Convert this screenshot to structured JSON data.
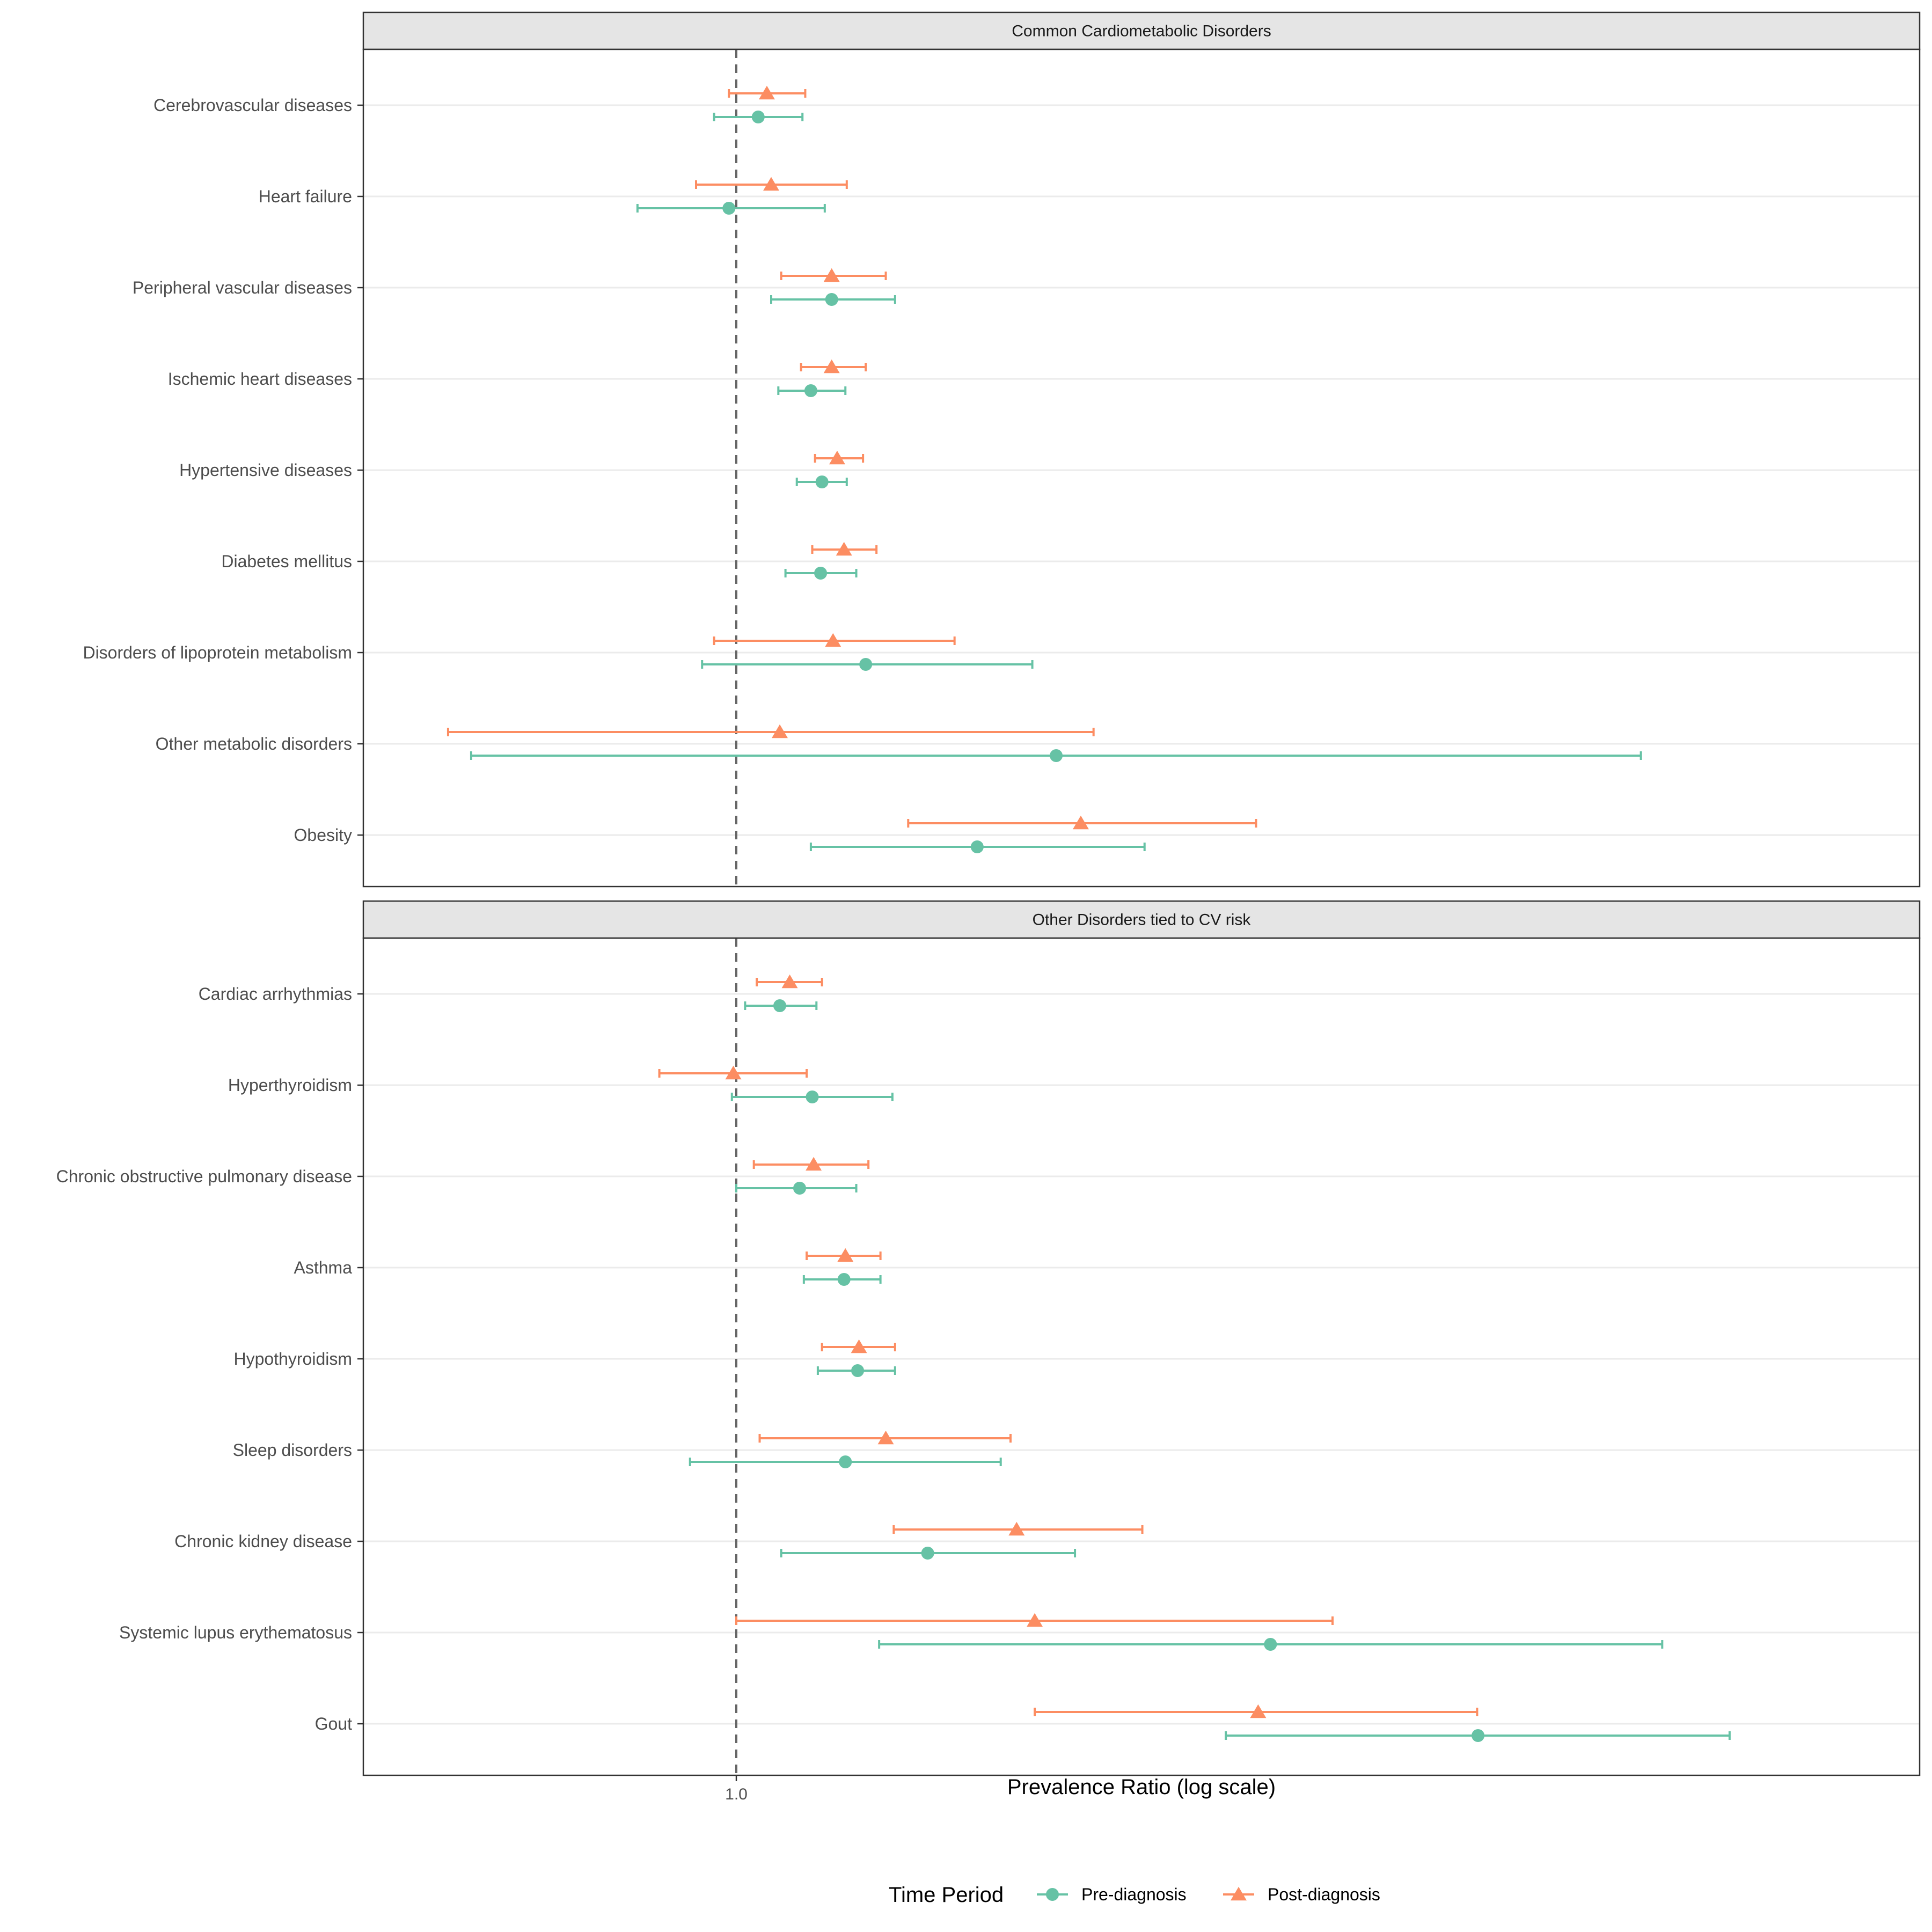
{
  "chart_data": {
    "type": "forest",
    "xlabel": "Prevalence Ratio (log scale)",
    "x_scale": "log",
    "x_ticks": [
      1.0
    ],
    "x_tick_labels": [
      "1.0"
    ],
    "xlim": [
      0.82,
      2.0
    ],
    "reference_line": 1.0,
    "grid": true,
    "legend": {
      "title": "Time Period",
      "position": "bottom",
      "entries": [
        {
          "label": "Pre-diagnosis",
          "color": "#66c2a5",
          "shape": "circle"
        },
        {
          "label": "Post-diagnosis",
          "color": "#fc8d62",
          "shape": "triangle"
        }
      ]
    },
    "panels": [
      {
        "title": "Common Cardiometabolic Disorders",
        "rows": [
          {
            "label": "Cerebrovascular diseases",
            "pre": {
              "est": 1.015,
              "lo": 0.985,
              "hi": 1.046
            },
            "post": {
              "est": 1.021,
              "lo": 0.995,
              "hi": 1.048
            }
          },
          {
            "label": "Heart failure",
            "pre": {
              "est": 0.995,
              "lo": 0.935,
              "hi": 1.062
            },
            "post": {
              "est": 1.024,
              "lo": 0.973,
              "hi": 1.078
            }
          },
          {
            "label": "Peripheral vascular diseases",
            "pre": {
              "est": 1.067,
              "lo": 1.024,
              "hi": 1.114
            },
            "post": {
              "est": 1.067,
              "lo": 1.031,
              "hi": 1.107
            }
          },
          {
            "label": "Ischemic heart diseases",
            "pre": {
              "est": 1.052,
              "lo": 1.029,
              "hi": 1.077
            },
            "post": {
              "est": 1.067,
              "lo": 1.045,
              "hi": 1.092
            }
          },
          {
            "label": "Hypertensive diseases",
            "pre": {
              "est": 1.06,
              "lo": 1.042,
              "hi": 1.078
            },
            "post": {
              "est": 1.071,
              "lo": 1.055,
              "hi": 1.09
            }
          },
          {
            "label": "Diabetes mellitus",
            "pre": {
              "est": 1.059,
              "lo": 1.034,
              "hi": 1.085
            },
            "post": {
              "est": 1.076,
              "lo": 1.053,
              "hi": 1.1
            }
          },
          {
            "label": "Disorders of lipoprotein metabolism",
            "pre": {
              "est": 1.092,
              "lo": 0.977,
              "hi": 1.223
            },
            "post": {
              "est": 1.068,
              "lo": 0.985,
              "hi": 1.16
            }
          },
          {
            "label": "Other metabolic disorders",
            "pre": {
              "est": 1.243,
              "lo": 0.835,
              "hi": 1.85
            },
            "post": {
              "est": 1.03,
              "lo": 0.822,
              "hi": 1.275
            }
          },
          {
            "label": "Obesity",
            "pre": {
              "est": 1.178,
              "lo": 1.052,
              "hi": 1.32
            },
            "post": {
              "est": 1.264,
              "lo": 1.124,
              "hi": 1.424
            }
          }
        ]
      },
      {
        "title": "Other Disorders tied to CV risk",
        "rows": [
          {
            "label": "Cardiac arrhythmias",
            "pre": {
              "est": 1.03,
              "lo": 1.006,
              "hi": 1.056
            },
            "post": {
              "est": 1.037,
              "lo": 1.014,
              "hi": 1.06
            }
          },
          {
            "label": "Hyperthyroidism",
            "pre": {
              "est": 1.053,
              "lo": 0.997,
              "hi": 1.112
            },
            "post": {
              "est": 0.998,
              "lo": 0.949,
              "hi": 1.049
            }
          },
          {
            "label": "Chronic obstructive pulmonary disease",
            "pre": {
              "est": 1.044,
              "lo": 1.0,
              "hi": 1.085
            },
            "post": {
              "est": 1.054,
              "lo": 1.012,
              "hi": 1.094
            }
          },
          {
            "label": "Asthma",
            "pre": {
              "est": 1.076,
              "lo": 1.047,
              "hi": 1.103
            },
            "post": {
              "est": 1.077,
              "lo": 1.049,
              "hi": 1.103
            }
          },
          {
            "label": "Hypothyroidism",
            "pre": {
              "est": 1.086,
              "lo": 1.057,
              "hi": 1.114
            },
            "post": {
              "est": 1.087,
              "lo": 1.06,
              "hi": 1.114
            }
          },
          {
            "label": "Sleep disorders",
            "pre": {
              "est": 1.077,
              "lo": 0.969,
              "hi": 1.197
            },
            "post": {
              "est": 1.107,
              "lo": 1.016,
              "hi": 1.205
            }
          },
          {
            "label": "Chronic kidney disease",
            "pre": {
              "est": 1.139,
              "lo": 1.031,
              "hi": 1.259
            },
            "post": {
              "est": 1.21,
              "lo": 1.113,
              "hi": 1.318
            }
          },
          {
            "label": "Systemic lupus erythematosus",
            "pre": {
              "est": 1.438,
              "lo": 1.102,
              "hi": 1.877
            },
            "post": {
              "est": 1.225,
              "lo": 1.0,
              "hi": 1.5
            }
          },
          {
            "label": "Gout",
            "pre": {
              "est": 1.656,
              "lo": 1.395,
              "hi": 1.965
            },
            "post": {
              "est": 1.426,
              "lo": 1.225,
              "hi": 1.655
            }
          }
        ]
      }
    ]
  }
}
